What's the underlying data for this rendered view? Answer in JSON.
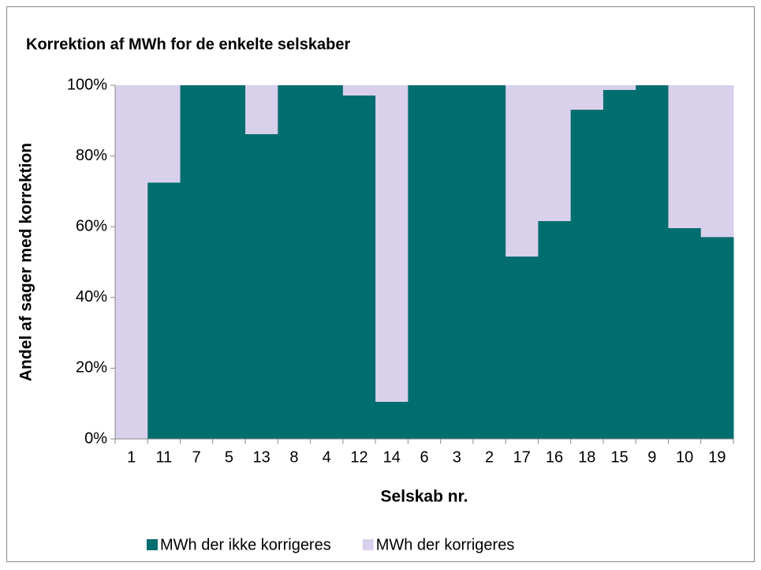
{
  "chart_data": {
    "type": "stacked_bar",
    "title": "Korrektion af MWh for de enkelte selskaber",
    "x_label": "Selskab nr.",
    "y_label": "Andel af sager med korrektion",
    "categories": [
      "1",
      "11",
      "7",
      "5",
      "13",
      "8",
      "4",
      "12",
      "14",
      "6",
      "3",
      "2",
      "17",
      "16",
      "18",
      "15",
      "9",
      "10",
      "19"
    ],
    "series": [
      {
        "name": "MWh der ikke korrigeres",
        "color": "#006d6f",
        "values": [
          0,
          72.5,
          100,
          100,
          86.2,
          100,
          100,
          97.1,
          10.5,
          100,
          100,
          100,
          51.6,
          61.6,
          93.1,
          98.7,
          100,
          59.6,
          57.1
        ]
      },
      {
        "name": "MWh der korrigeres",
        "color": "#d9d0ec",
        "values": [
          100,
          27.5,
          0,
          0,
          13.8,
          0,
          0,
          2.9,
          89.5,
          0,
          0,
          0,
          48.4,
          38.4,
          6.9,
          1.3,
          0,
          40.4,
          42.9
        ]
      }
    ],
    "ylim": [
      0,
      100
    ],
    "yticks": [
      {
        "value": 0,
        "label": "0%"
      },
      {
        "value": 20,
        "label": "20%"
      },
      {
        "value": 40,
        "label": "40%"
      },
      {
        "value": 60,
        "label": "60%"
      },
      {
        "value": 80,
        "label": "80%"
      },
      {
        "value": 100,
        "label": "100%"
      }
    ],
    "legend": "bottom"
  }
}
